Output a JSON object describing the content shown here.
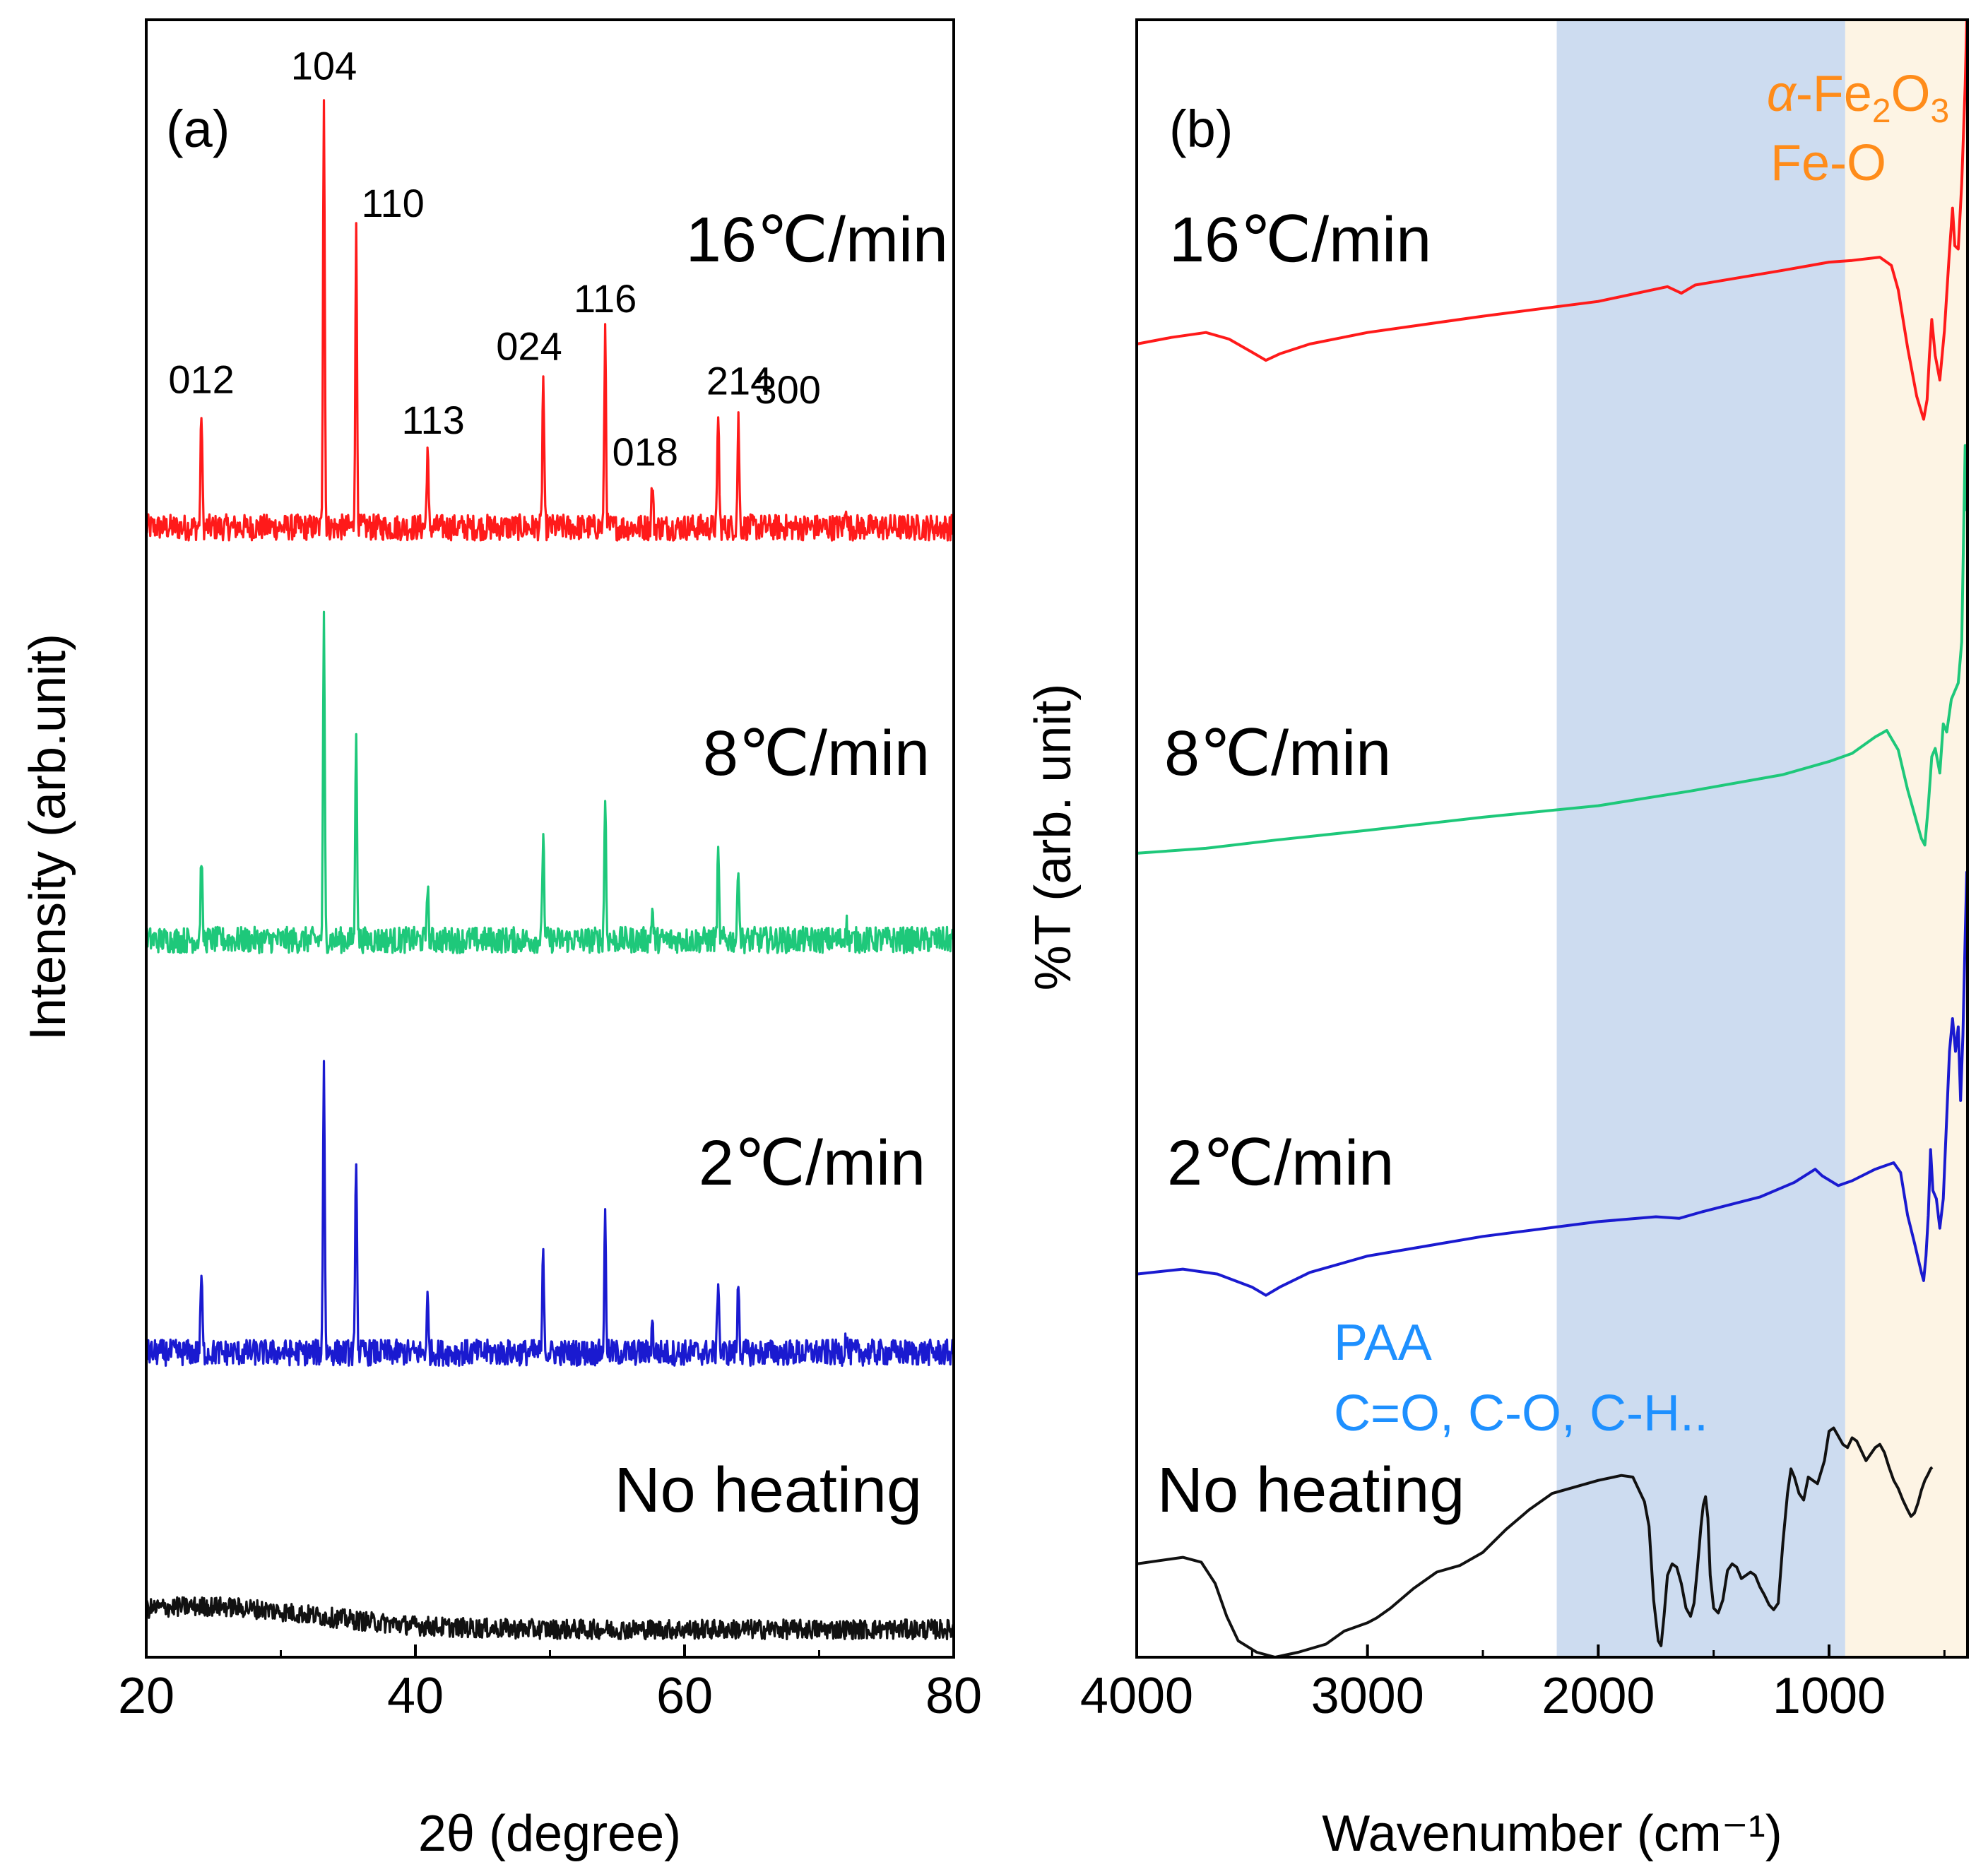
{
  "figure": {
    "colors": {
      "16": "#ff1a1a",
      "8": "#1ec87a",
      "2": "#1a1ad0",
      "none": "#111111",
      "paa_band": "#cddcf0",
      "feo_band": "#fdf4e4",
      "paa_text": "#1e90ff",
      "feo_text": "#ff8c1a"
    }
  },
  "chart_data": [
    {
      "id": "a",
      "type": "line",
      "panel_label": "(a)",
      "xlabel": "2θ (degree)",
      "ylabel": "Intensity (arb.unit)",
      "xlim": [
        20,
        80
      ],
      "ylim": [
        0,
        100
      ],
      "xticks": [
        20,
        40,
        60,
        80
      ],
      "xtick_labels": [
        "20",
        "40",
        "60",
        "80"
      ],
      "peaks": [
        {
          "label": "012",
          "x": 24.1,
          "h": 0.27
        },
        {
          "label": "104",
          "x": 33.2,
          "h": 1.0
        },
        {
          "label": "110",
          "x": 35.6,
          "h": 0.68
        },
        {
          "label": "113",
          "x": 40.9,
          "h": 0.18
        },
        {
          "label": "024",
          "x": 49.5,
          "h": 0.35
        },
        {
          "label": "116",
          "x": 54.1,
          "h": 0.46
        },
        {
          "label": "018",
          "x": 57.6,
          "h": 0.1
        },
        {
          "label": "214",
          "x": 62.5,
          "h": 0.27
        },
        {
          "label": "300",
          "x": 64.0,
          "h": 0.25
        },
        {
          "label": "",
          "x": 72.0,
          "h": 0.06
        }
      ],
      "series": [
        {
          "name": "16℃/min",
          "color_key": "16",
          "baseline": 69.0,
          "scale": 26.5,
          "noise": 0.8,
          "crystalline": true
        },
        {
          "name": "8℃/min",
          "color_key": "8",
          "baseline": 43.8,
          "scale": 19.4,
          "noise": 0.8,
          "crystalline": true
        },
        {
          "name": "2℃/min",
          "color_key": "2",
          "baseline": 18.6,
          "scale": 18.0,
          "noise": 0.8,
          "crystalline": true
        },
        {
          "name": "No heating",
          "color_key": "none",
          "baseline": 1.7,
          "scale": 0,
          "noise": 0.6,
          "crystalline": false,
          "amorphous_hump": 1.4
        }
      ]
    },
    {
      "id": "b",
      "type": "line",
      "panel_label": "(b)",
      "xlabel": "Wavenumber (cm⁻¹)",
      "ylabel": "%T (arb. unit)",
      "xlim": [
        4000,
        400
      ],
      "ylim": [
        0,
        100
      ],
      "xticks": [
        4000,
        3000,
        2000,
        1000
      ],
      "xtick_labels": [
        "4000",
        "3000",
        "2000",
        "1000"
      ],
      "bands": [
        {
          "name": "PAA",
          "x_from": 2180,
          "x_to": 930,
          "color_key": "paa_band",
          "label_lines": [
            "PAA",
            "C=O, C-O, C-H.."
          ],
          "text_color_key": "paa_text"
        },
        {
          "name": "α-Fe2O3",
          "x_from": 930,
          "x_to": 400,
          "color_key": "feo_band",
          "label_lines": [
            "α-Fe2O3",
            "Fe-O"
          ],
          "text_color_key": "feo_text"
        }
      ],
      "series": [
        {
          "name": "16℃/min",
          "color_key": "16",
          "points": [
            [
              4000,
              80.2
            ],
            [
              3850,
              80.6
            ],
            [
              3700,
              80.9
            ],
            [
              3600,
              80.5
            ],
            [
              3500,
              79.7
            ],
            [
              3440,
              79.2
            ],
            [
              3380,
              79.6
            ],
            [
              3250,
              80.2
            ],
            [
              3000,
              80.9
            ],
            [
              2500,
              81.9
            ],
            [
              2000,
              82.8
            ],
            [
              1700,
              83.7
            ],
            [
              1640,
              83.3
            ],
            [
              1580,
              83.8
            ],
            [
              1200,
              84.7
            ],
            [
              1000,
              85.2
            ],
            [
              900,
              85.3
            ],
            [
              780,
              85.5
            ],
            [
              730,
              85.0
            ],
            [
              700,
              83.5
            ],
            [
              660,
              80.0
            ],
            [
              620,
              77.0
            ],
            [
              590,
              75.6
            ],
            [
              575,
              76.8
            ],
            [
              565,
              79.5
            ],
            [
              555,
              81.7
            ],
            [
              540,
              79.5
            ],
            [
              520,
              78.0
            ],
            [
              500,
              81.0
            ],
            [
              480,
              85.5
            ],
            [
              465,
              88.5
            ],
            [
              455,
              86.2
            ],
            [
              440,
              86.0
            ],
            [
              425,
              90.0
            ],
            [
              410,
              96.0
            ],
            [
              403,
              100.0
            ]
          ]
        },
        {
          "name": "8℃/min",
          "color_key": "8",
          "points": [
            [
              4000,
              49.1
            ],
            [
              3700,
              49.4
            ],
            [
              3400,
              49.9
            ],
            [
              3000,
              50.5
            ],
            [
              2500,
              51.3
            ],
            [
              2000,
              52.0
            ],
            [
              1600,
              52.9
            ],
            [
              1200,
              53.9
            ],
            [
              1000,
              54.7
            ],
            [
              900,
              55.2
            ],
            [
              800,
              56.2
            ],
            [
              750,
              56.6
            ],
            [
              700,
              55.4
            ],
            [
              660,
              53.0
            ],
            [
              620,
              51.0
            ],
            [
              600,
              50.0
            ],
            [
              585,
              49.6
            ],
            [
              570,
              52.0
            ],
            [
              555,
              55.0
            ],
            [
              540,
              55.5
            ],
            [
              520,
              54.0
            ],
            [
              505,
              57.0
            ],
            [
              490,
              56.5
            ],
            [
              470,
              58.5
            ],
            [
              455,
              59.0
            ],
            [
              440,
              59.5
            ],
            [
              425,
              62.0
            ],
            [
              410,
              74.0
            ],
            [
              403,
              70.0
            ]
          ]
        },
        {
          "name": "2℃/min",
          "color_key": "2",
          "points": [
            [
              4000,
              23.4
            ],
            [
              3800,
              23.7
            ],
            [
              3650,
              23.4
            ],
            [
              3500,
              22.6
            ],
            [
              3440,
              22.1
            ],
            [
              3380,
              22.6
            ],
            [
              3250,
              23.5
            ],
            [
              3000,
              24.5
            ],
            [
              2500,
              25.7
            ],
            [
              2000,
              26.6
            ],
            [
              1750,
              26.9
            ],
            [
              1650,
              26.8
            ],
            [
              1550,
              27.2
            ],
            [
              1300,
              28.1
            ],
            [
              1150,
              29.0
            ],
            [
              1060,
              29.8
            ],
            [
              1030,
              29.4
            ],
            [
              960,
              28.8
            ],
            [
              900,
              29.1
            ],
            [
              800,
              29.8
            ],
            [
              720,
              30.2
            ],
            [
              690,
              29.6
            ],
            [
              660,
              27.0
            ],
            [
              630,
              25.3
            ],
            [
              600,
              23.5
            ],
            [
              590,
              23.0
            ],
            [
              580,
              24.5
            ],
            [
              570,
              27.0
            ],
            [
              560,
              31.0
            ],
            [
              550,
              28.5
            ],
            [
              535,
              28.0
            ],
            [
              520,
              26.2
            ],
            [
              505,
              28.0
            ],
            [
              490,
              33.0
            ],
            [
              478,
              37.0
            ],
            [
              465,
              39.0
            ],
            [
              452,
              37.0
            ],
            [
              440,
              38.5
            ],
            [
              430,
              34.0
            ],
            [
              420,
              38.0
            ],
            [
              410,
              44.0
            ],
            [
              403,
              48.0
            ]
          ]
        },
        {
          "name": "No heating",
          "color_key": "none",
          "points": [
            [
              4000,
              5.7
            ],
            [
              3900,
              5.9
            ],
            [
              3800,
              6.1
            ],
            [
              3720,
              5.8
            ],
            [
              3660,
              4.5
            ],
            [
              3610,
              2.5
            ],
            [
              3560,
              1.0
            ],
            [
              3480,
              0.3
            ],
            [
              3400,
              0.0
            ],
            [
              3300,
              0.3
            ],
            [
              3180,
              0.8
            ],
            [
              3100,
              1.6
            ],
            [
              3000,
              2.1
            ],
            [
              2960,
              2.4
            ],
            [
              2900,
              3.0
            ],
            [
              2800,
              4.2
            ],
            [
              2700,
              5.2
            ],
            [
              2600,
              5.6
            ],
            [
              2500,
              6.4
            ],
            [
              2400,
              7.8
            ],
            [
              2300,
              9.0
            ],
            [
              2200,
              10.0
            ],
            [
              2100,
              10.4
            ],
            [
              2000,
              10.8
            ],
            [
              1900,
              11.1
            ],
            [
              1850,
              11.0
            ],
            [
              1800,
              9.5
            ],
            [
              1780,
              8.0
            ],
            [
              1760,
              3.5
            ],
            [
              1740,
              1.0
            ],
            [
              1728,
              0.7
            ],
            [
              1715,
              2.5
            ],
            [
              1700,
              5.0
            ],
            [
              1680,
              5.7
            ],
            [
              1660,
              5.5
            ],
            [
              1640,
              4.5
            ],
            [
              1620,
              3.0
            ],
            [
              1600,
              2.5
            ],
            [
              1585,
              3.3
            ],
            [
              1570,
              5.5
            ],
            [
              1555,
              8.0
            ],
            [
              1545,
              9.3
            ],
            [
              1535,
              9.8
            ],
            [
              1525,
              8.5
            ],
            [
              1515,
              5.0
            ],
            [
              1500,
              3.0
            ],
            [
              1480,
              2.7
            ],
            [
              1460,
              3.5
            ],
            [
              1440,
              5.3
            ],
            [
              1420,
              5.7
            ],
            [
              1400,
              5.5
            ],
            [
              1380,
              4.8
            ],
            [
              1360,
              5.0
            ],
            [
              1340,
              5.2
            ],
            [
              1320,
              5.0
            ],
            [
              1300,
              4.3
            ],
            [
              1280,
              3.8
            ],
            [
              1260,
              3.2
            ],
            [
              1240,
              2.9
            ],
            [
              1220,
              3.3
            ],
            [
              1200,
              7.0
            ],
            [
              1180,
              10.0
            ],
            [
              1165,
              11.5
            ],
            [
              1150,
              11.0
            ],
            [
              1130,
              10.0
            ],
            [
              1110,
              9.6
            ],
            [
              1090,
              11.0
            ],
            [
              1070,
              10.8
            ],
            [
              1050,
              10.6
            ],
            [
              1020,
              12.0
            ],
            [
              1000,
              13.8
            ],
            [
              980,
              14.0
            ],
            [
              960,
              13.5
            ],
            [
              940,
              13.0
            ],
            [
              920,
              12.8
            ],
            [
              900,
              13.4
            ],
            [
              880,
              13.2
            ],
            [
              860,
              12.6
            ],
            [
              840,
              12.0
            ],
            [
              820,
              12.4
            ],
            [
              800,
              12.8
            ],
            [
              780,
              13.0
            ],
            [
              760,
              12.5
            ],
            [
              740,
              11.6
            ],
            [
              720,
              10.8
            ],
            [
              700,
              10.3
            ],
            [
              680,
              9.6
            ],
            [
              660,
              9.0
            ],
            [
              645,
              8.6
            ],
            [
              630,
              8.8
            ],
            [
              615,
              9.4
            ],
            [
              600,
              10.2
            ],
            [
              585,
              10.8
            ],
            [
              570,
              11.2
            ],
            [
              560,
              11.5
            ],
            [
              553,
              11.6
            ]
          ]
        }
      ]
    }
  ],
  "text_labels": {
    "a_16": "16℃/min",
    "a_8": "8℃/min",
    "a_2": "2℃/min",
    "a_none": "No heating",
    "b_16": "16℃/min",
    "b_8": "8℃/min",
    "b_2": "2℃/min",
    "b_none": "No heating"
  }
}
